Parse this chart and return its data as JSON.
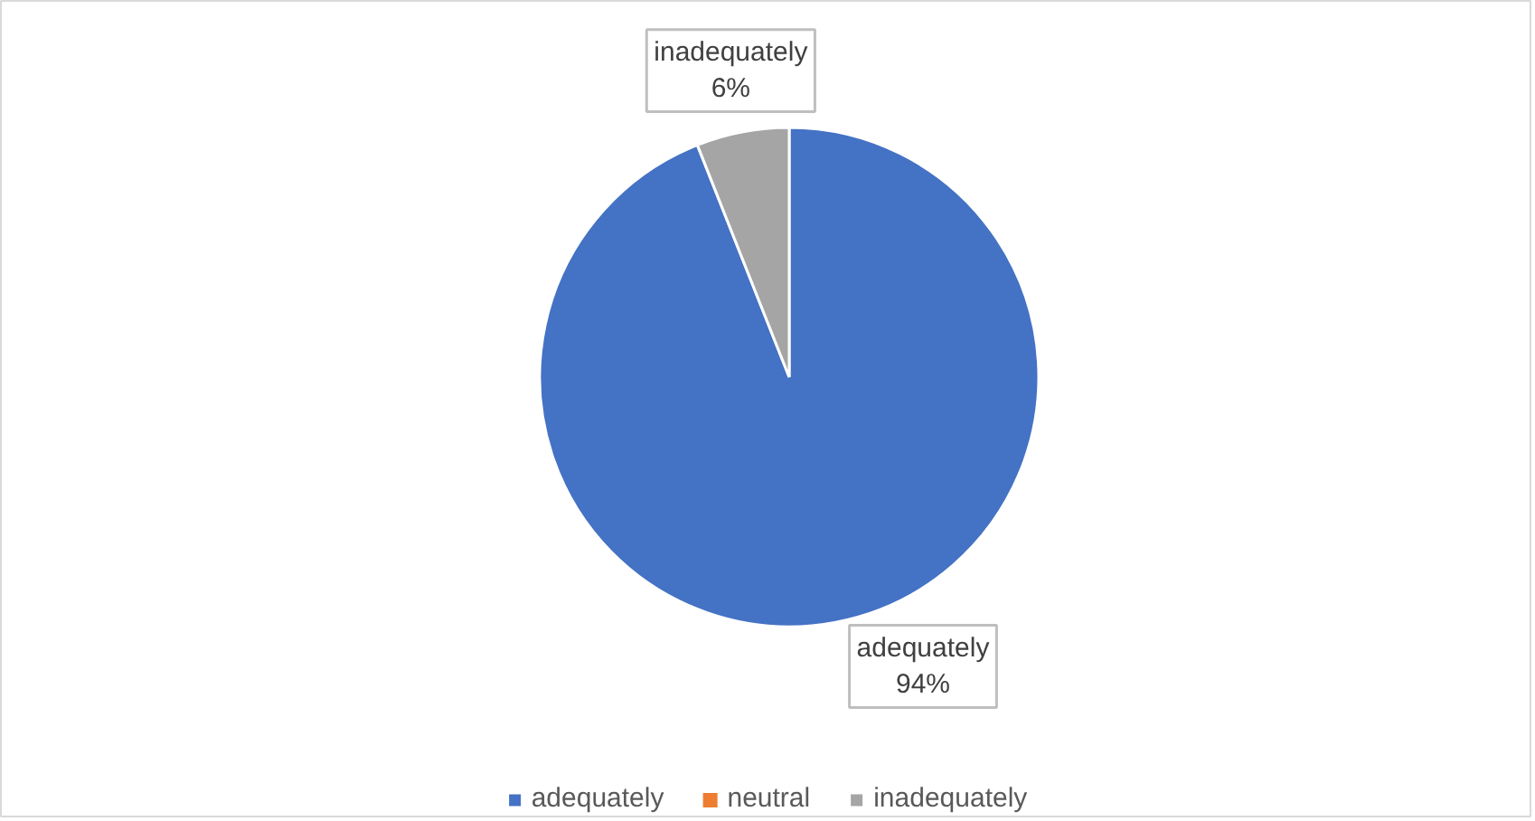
{
  "chart_data": {
    "type": "pie",
    "categories": [
      "adequately",
      "neutral",
      "inadequately"
    ],
    "values": [
      94,
      0,
      6
    ],
    "colors": [
      "#4472c4",
      "#ed7d31",
      "#a5a5a5"
    ],
    "value_labels": [
      "94%",
      null,
      "6%"
    ],
    "legend": "bottom"
  }
}
